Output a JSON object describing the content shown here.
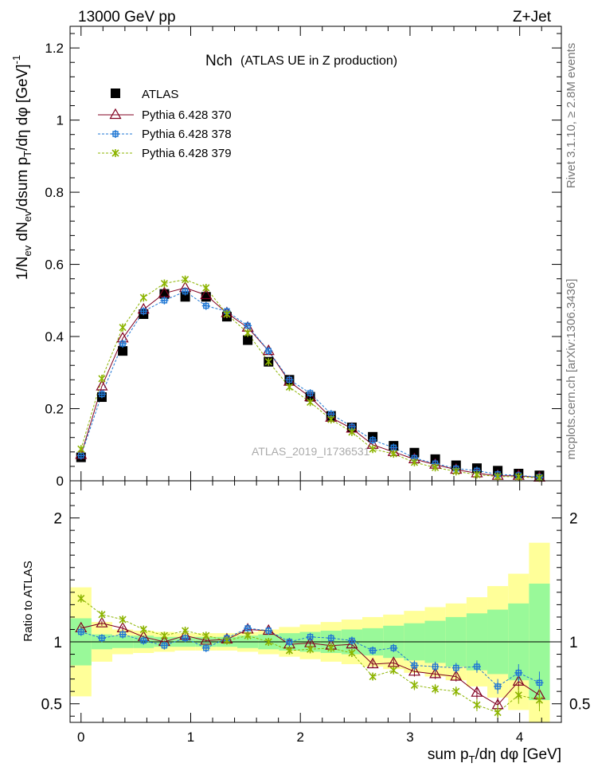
{
  "header": {
    "energy": "13000 GeV pp",
    "process": "Z+Jet",
    "side_label": "Rivet 3.1.10, ≥ 2.8M events",
    "side_label2": "mcplots.cern.ch [arXiv:1306.3436]",
    "watermark": "ATLAS_2019_I1736531"
  },
  "chart_data": [
    {
      "type": "scatter",
      "panel": "main",
      "title_main": "Nch",
      "title_sub": "(ATLAS UE in Z production)",
      "ylabel": "1/N_ev dN_ev/dsum p_T/dη dφ [GeV]^-1",
      "xlabel": "",
      "xlim": [
        -0.1,
        4.38
      ],
      "ylim": [
        0,
        1.26
      ],
      "y_ticks": [
        0,
        0.2,
        0.4,
        0.6,
        0.8,
        1,
        1.2
      ],
      "y_tick_labels": [
        "0",
        "0.2",
        "0.4",
        "0.6",
        "0.8",
        "1",
        "1.2"
      ],
      "legend_position": "top-left",
      "legend": [
        "ATLAS",
        "Pythia 6.428 370",
        "Pythia 6.428 378",
        "Pythia 6.428 379"
      ],
      "x": [
        0.0,
        0.19,
        0.38,
        0.57,
        0.76,
        0.95,
        1.14,
        1.33,
        1.52,
        1.71,
        1.9,
        2.09,
        2.28,
        2.47,
        2.66,
        2.85,
        3.04,
        3.23,
        3.42,
        3.61,
        3.8,
        3.99,
        4.18
      ],
      "series": [
        {
          "name": "ATLAS",
          "color": "#000000",
          "values": [
            0.065,
            0.232,
            0.36,
            0.462,
            0.518,
            0.51,
            0.51,
            0.455,
            0.39,
            0.33,
            0.28,
            0.233,
            0.18,
            0.148,
            0.122,
            0.097,
            0.078,
            0.06,
            0.043,
            0.035,
            0.028,
            0.02,
            0.015
          ]
        },
        {
          "name": "Pythia 6.428 370",
          "color": "#800020",
          "values": [
            0.072,
            0.262,
            0.395,
            0.475,
            0.52,
            0.535,
            0.515,
            0.465,
            0.425,
            0.36,
            0.275,
            0.232,
            0.175,
            0.145,
            0.1,
            0.08,
            0.06,
            0.045,
            0.031,
            0.021,
            0.014,
            0.014,
            0.009
          ]
        },
        {
          "name": "Pythia 6.428 378",
          "color": "#1f77d4",
          "values": [
            0.07,
            0.24,
            0.38,
            0.47,
            0.5,
            0.525,
            0.485,
            0.47,
            0.43,
            0.36,
            0.28,
            0.243,
            0.185,
            0.15,
            0.113,
            0.092,
            0.063,
            0.048,
            0.034,
            0.028,
            0.018,
            0.015,
            0.01
          ]
        },
        {
          "name": "Pythia 6.428 379",
          "color": "#8cb400",
          "values": [
            0.088,
            0.283,
            0.425,
            0.508,
            0.547,
            0.558,
            0.535,
            0.462,
            0.41,
            0.33,
            0.26,
            0.218,
            0.17,
            0.135,
            0.088,
            0.075,
            0.051,
            0.037,
            0.026,
            0.017,
            0.012,
            0.011,
            0.008
          ]
        }
      ]
    },
    {
      "type": "scatter",
      "panel": "ratio",
      "ylabel": "Ratio to ATLAS",
      "xlabel": "sum p_T/dη dφ [GeV]",
      "xlim": [
        -0.1,
        4.38
      ],
      "ylim": [
        0.35,
        2.3
      ],
      "x_ticks": [
        0,
        1,
        2,
        3,
        4
      ],
      "x_tick_labels": [
        "0",
        "1",
        "2",
        "3",
        "4"
      ],
      "y_ticks": [
        0.5,
        1,
        2
      ],
      "y_tick_labels": [
        "0.5",
        "1",
        "2"
      ],
      "band_inner_color": "#99f999",
      "band_outer_color": "#ffff99",
      "band_inner_halfwidth": [
        0.19,
        0.06,
        0.05,
        0.05,
        0.04,
        0.04,
        0.04,
        0.04,
        0.05,
        0.06,
        0.07,
        0.08,
        0.09,
        0.1,
        0.11,
        0.13,
        0.15,
        0.17,
        0.2,
        0.23,
        0.26,
        0.31,
        0.47
      ],
      "band_outer_halfwidth": [
        0.44,
        0.16,
        0.1,
        0.09,
        0.08,
        0.07,
        0.07,
        0.07,
        0.08,
        0.1,
        0.12,
        0.14,
        0.16,
        0.18,
        0.2,
        0.22,
        0.25,
        0.28,
        0.31,
        0.36,
        0.45,
        0.55,
        0.8
      ],
      "x": [
        0.0,
        0.19,
        0.38,
        0.57,
        0.76,
        0.95,
        1.14,
        1.33,
        1.52,
        1.71,
        1.9,
        2.09,
        2.28,
        2.47,
        2.66,
        2.85,
        3.04,
        3.23,
        3.42,
        3.61,
        3.8,
        3.99,
        4.18
      ],
      "series": [
        {
          "name": "Pythia 6.428 370",
          "color": "#800020",
          "values": [
            1.11,
            1.15,
            1.11,
            1.04,
            1.0,
            1.05,
            1.01,
            1.02,
            1.1,
            1.09,
            0.98,
            0.99,
            0.97,
            0.98,
            0.82,
            0.83,
            0.76,
            0.74,
            0.72,
            0.59,
            0.49,
            0.68,
            0.57
          ],
          "errors": [
            0.02,
            0.02,
            0.02,
            0.01,
            0.01,
            0.01,
            0.01,
            0.01,
            0.01,
            0.01,
            0.02,
            0.02,
            0.02,
            0.03,
            0.03,
            0.03,
            0.04,
            0.04,
            0.04,
            0.05,
            0.06,
            0.07,
            0.09
          ]
        },
        {
          "name": "Pythia 6.428 378",
          "color": "#1f77d4",
          "values": [
            1.08,
            1.03,
            1.06,
            1.01,
            0.97,
            1.03,
            0.95,
            1.03,
            1.11,
            1.09,
            1.0,
            1.04,
            1.03,
            1.01,
            0.93,
            0.95,
            0.81,
            0.8,
            0.79,
            0.8,
            0.64,
            0.75,
            0.67
          ],
          "errors": [
            0.02,
            0.02,
            0.02,
            0.01,
            0.01,
            0.01,
            0.01,
            0.01,
            0.01,
            0.01,
            0.02,
            0.02,
            0.02,
            0.03,
            0.03,
            0.03,
            0.04,
            0.04,
            0.04,
            0.05,
            0.06,
            0.07,
            0.09
          ]
        },
        {
          "name": "Pythia 6.428 379",
          "color": "#8cb400",
          "values": [
            1.35,
            1.22,
            1.18,
            1.1,
            1.05,
            1.09,
            1.05,
            1.01,
            1.05,
            1.0,
            0.93,
            0.94,
            0.95,
            0.91,
            0.72,
            0.77,
            0.65,
            0.62,
            0.6,
            0.49,
            0.43,
            0.57,
            0.53
          ],
          "errors": [
            0.02,
            0.02,
            0.02,
            0.01,
            0.01,
            0.01,
            0.01,
            0.01,
            0.01,
            0.01,
            0.02,
            0.02,
            0.02,
            0.03,
            0.03,
            0.03,
            0.04,
            0.04,
            0.04,
            0.05,
            0.06,
            0.07,
            0.09
          ]
        }
      ]
    }
  ]
}
